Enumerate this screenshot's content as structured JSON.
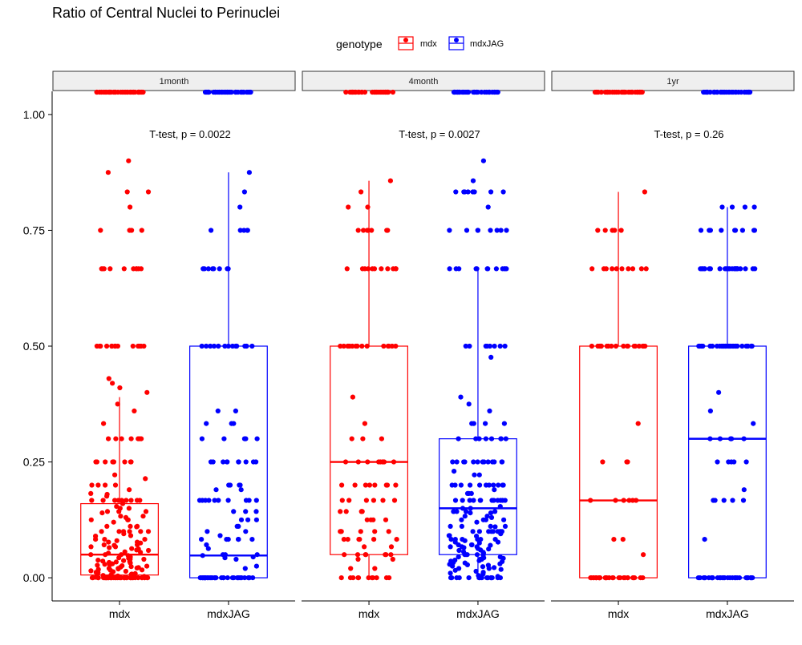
{
  "chart_data": {
    "type": "box",
    "title": "Ratio of Central Nuclei to Perinuclei",
    "xlabel": "",
    "ylabel": "",
    "ylim": [
      -0.05,
      1.05
    ],
    "yticks": [
      "0.00",
      "0.25",
      "0.50",
      "0.75",
      "1.00"
    ],
    "grid": false,
    "legend": {
      "title": "genotype",
      "position": "top",
      "entries": [
        {
          "name": "mdx",
          "color": "#ff0000"
        },
        {
          "name": "mdxJAG",
          "color": "#0000ff"
        }
      ]
    },
    "panels": [
      {
        "strip": "1month",
        "annotation": "T-test, p = 0.0022",
        "boxes": [
          {
            "group": "mdx",
            "color": "#ff0000",
            "q1": 0.006,
            "median": 0.05,
            "q3": 0.16,
            "whisker_low": 0.0,
            "whisker_high": 0.39,
            "cap_count": 40,
            "points": [
              0.9,
              0.875,
              0.833,
              0.833,
              0.8,
              0.75,
              0.75,
              0.75,
              0.75,
              0.667,
              0.667,
              0.667,
              0.667,
              0.667,
              0.667,
              0.667,
              0.667,
              0.667,
              0.667,
              0.5,
              0.5,
              0.5,
              0.5,
              0.5,
              0.5,
              0.5,
              0.5,
              0.5,
              0.5,
              0.5,
              0.5,
              0.5,
              0.5,
              0.43,
              0.42,
              0.41,
              0.4,
              0.375,
              0.36,
              0.333,
              0.3,
              0.3,
              0.3,
              0.3,
              0.3,
              0.3,
              0.3,
              0.25,
              0.25,
              0.25,
              0.25,
              0.25,
              0.25,
              0.25,
              0.25,
              0.25,
              0.222,
              0.214,
              0.2,
              0.2,
              0.2,
              0.2,
              0.19,
              0.182,
              0.18,
              0.176,
              0.167,
              0.167,
              0.167,
              0.167,
              0.167,
              0.167,
              0.167,
              0.167,
              0.167,
              0.16,
              0.154,
              0.15,
              0.15,
              0.143,
              0.143,
              0.143,
              0.14,
              0.133,
              0.133,
              0.13,
              0.125,
              0.125,
              0.125,
              0.12,
              0.111,
              0.111,
              0.111,
              0.11,
              0.1,
              0.1,
              0.1,
              0.1,
              0.1,
              0.1,
              0.095,
              0.091,
              0.09,
              0.083,
              0.083,
              0.083,
              0.08,
              0.077,
              0.077,
              0.075,
              0.071,
              0.071,
              0.07,
              0.067,
              0.067,
              0.065,
              0.063,
              0.062,
              0.06,
              0.059,
              0.056,
              0.055,
              0.053,
              0.05,
              0.05,
              0.05,
              0.048,
              0.045,
              0.045,
              0.043,
              0.042,
              0.04,
              0.04,
              0.038,
              0.037,
              0.036,
              0.035,
              0.034,
              0.033,
              0.032,
              0.03,
              0.03,
              0.029,
              0.028,
              0.027,
              0.026,
              0.025,
              0.024,
              0.023,
              0.022,
              0.021,
              0.02,
              0.02,
              0.019,
              0.018,
              0.017,
              0.016,
              0.015,
              0.014,
              0.013,
              0.012,
              0.011,
              0.01,
              0.01,
              0.009,
              0.008,
              0.007,
              0.006,
              0.005,
              0.004,
              0.003,
              0.002,
              0.001,
              0,
              0,
              0,
              0,
              0,
              0,
              0,
              0,
              0,
              0,
              0,
              0,
              0,
              0,
              0,
              0,
              0,
              0,
              0,
              0,
              0,
              0,
              0,
              0,
              0,
              0,
              0,
              0,
              0,
              0,
              0,
              0,
              0,
              0,
              0,
              0,
              0,
              0,
              0,
              0
            ]
          },
          {
            "group": "mdxJAG",
            "color": "#0000ff",
            "q1": 0.0,
            "median": 0.048,
            "q3": 0.5,
            "whisker_low": 0.0,
            "whisker_high": 0.875,
            "cap_count": 40,
            "points": [
              0.875,
              0.833,
              0.8,
              0.75,
              0.75,
              0.75,
              0.75,
              0.75,
              0.667,
              0.667,
              0.667,
              0.667,
              0.667,
              0.667,
              0.667,
              0.667,
              0.5,
              0.5,
              0.5,
              0.5,
              0.5,
              0.5,
              0.5,
              0.5,
              0.5,
              0.5,
              0.5,
              0.5,
              0.5,
              0.5,
              0.36,
              0.36,
              0.333,
              0.333,
              0.333,
              0.3,
              0.3,
              0.3,
              0.3,
              0.3,
              0.25,
              0.25,
              0.25,
              0.25,
              0.25,
              0.25,
              0.25,
              0.25,
              0.25,
              0.25,
              0.2,
              0.2,
              0.2,
              0.2,
              0.19,
              0.19,
              0.167,
              0.167,
              0.167,
              0.167,
              0.167,
              0.167,
              0.167,
              0.167,
              0.167,
              0.167,
              0.143,
              0.143,
              0.143,
              0.125,
              0.125,
              0.125,
              0.111,
              0.111,
              0.1,
              0.1,
              0.091,
              0.083,
              0.083,
              0.083,
              0.083,
              0.083,
              0.083,
              0.071,
              0.063,
              0.05,
              0.05,
              0.05,
              0.048,
              0.045,
              0.043,
              0.04,
              0.025,
              0.02,
              0,
              0,
              0,
              0,
              0,
              0,
              0,
              0,
              0,
              0,
              0,
              0,
              0,
              0,
              0,
              0,
              0,
              0,
              0,
              0,
              0,
              0,
              0,
              0,
              0,
              0,
              0,
              0,
              0,
              0,
              0,
              0,
              0,
              0
            ]
          }
        ]
      },
      {
        "strip": "4month",
        "annotation": "T-test, p = 0.0027",
        "boxes": [
          {
            "group": "mdx",
            "color": "#ff0000",
            "q1": 0.05,
            "median": 0.25,
            "q3": 0.5,
            "whisker_low": 0.0,
            "whisker_high": 0.857,
            "cap_count": 35,
            "points": [
              0.857,
              0.833,
              0.8,
              0.8,
              0.75,
              0.75,
              0.75,
              0.75,
              0.75,
              0.75,
              0.75,
              0.667,
              0.667,
              0.667,
              0.667,
              0.667,
              0.667,
              0.667,
              0.667,
              0.667,
              0.667,
              0.667,
              0.667,
              0.5,
              0.5,
              0.5,
              0.5,
              0.5,
              0.5,
              0.5,
              0.5,
              0.5,
              0.5,
              0.5,
              0.5,
              0.5,
              0.5,
              0.5,
              0.5,
              0.39,
              0.333,
              0.3,
              0.3,
              0.3,
              0.25,
              0.25,
              0.25,
              0.25,
              0.25,
              0.25,
              0.25,
              0.25,
              0.25,
              0.2,
              0.2,
              0.2,
              0.2,
              0.2,
              0.2,
              0.2,
              0.2,
              0.167,
              0.167,
              0.167,
              0.167,
              0.167,
              0.167,
              0.143,
              0.143,
              0.143,
              0.143,
              0.143,
              0.125,
              0.125,
              0.125,
              0.125,
              0.1,
              0.1,
              0.1,
              0.1,
              0.1,
              0.1,
              0.083,
              0.083,
              0.083,
              0.083,
              0.083,
              0.083,
              0.067,
              0.067,
              0.05,
              0.05,
              0.05,
              0.05,
              0.05,
              0.05,
              0.05,
              0.04,
              0.04,
              0.02,
              0.02,
              0,
              0,
              0,
              0,
              0,
              0,
              0,
              0,
              0,
              0,
              0
            ]
          },
          {
            "group": "mdxJAG",
            "color": "#0000ff",
            "q1": 0.05,
            "median": 0.15,
            "q3": 0.3,
            "whisker_low": 0.0,
            "whisker_high": 0.667,
            "cap_count": 35,
            "points": [
              0.9,
              0.857,
              0.833,
              0.833,
              0.833,
              0.833,
              0.833,
              0.833,
              0.833,
              0.833,
              0.8,
              0.75,
              0.75,
              0.75,
              0.75,
              0.75,
              0.75,
              0.75,
              0.75,
              0.667,
              0.667,
              0.667,
              0.667,
              0.667,
              0.667,
              0.667,
              0.667,
              0.667,
              0.667,
              0.667,
              0.667,
              0.5,
              0.5,
              0.5,
              0.5,
              0.5,
              0.5,
              0.5,
              0.5,
              0.476,
              0.39,
              0.375,
              0.36,
              0.333,
              0.333,
              0.333,
              0.333,
              0.3,
              0.3,
              0.3,
              0.3,
              0.3,
              0.3,
              0.3,
              0.3,
              0.25,
              0.25,
              0.25,
              0.25,
              0.25,
              0.25,
              0.25,
              0.25,
              0.25,
              0.25,
              0.25,
              0.25,
              0.25,
              0.23,
              0.222,
              0.222,
              0.2,
              0.2,
              0.2,
              0.2,
              0.2,
              0.2,
              0.2,
              0.2,
              0.2,
              0.2,
              0.2,
              0.19,
              0.182,
              0.182,
              0.182,
              0.167,
              0.167,
              0.167,
              0.167,
              0.167,
              0.167,
              0.167,
              0.167,
              0.167,
              0.167,
              0.167,
              0.167,
              0.154,
              0.15,
              0.15,
              0.143,
              0.143,
              0.143,
              0.143,
              0.143,
              0.14,
              0.14,
              0.133,
              0.133,
              0.13,
              0.125,
              0.125,
              0.125,
              0.125,
              0.12,
              0.111,
              0.111,
              0.111,
              0.111,
              0.11,
              0.1,
              0.1,
              0.1,
              0.1,
              0.1,
              0.1,
              0.1,
              0.1,
              0.1,
              0.095,
              0.091,
              0.091,
              0.09,
              0.083,
              0.083,
              0.083,
              0.083,
              0.083,
              0.083,
              0.08,
              0.077,
              0.077,
              0.075,
              0.071,
              0.071,
              0.071,
              0.07,
              0.067,
              0.067,
              0.067,
              0.065,
              0.063,
              0.062,
              0.06,
              0.059,
              0.056,
              0.055,
              0.053,
              0.05,
              0.05,
              0.05,
              0.05,
              0.048,
              0.045,
              0.045,
              0.043,
              0.042,
              0.04,
              0.04,
              0.038,
              0.037,
              0.036,
              0.035,
              0.033,
              0.032,
              0.03,
              0.03,
              0.029,
              0.028,
              0.027,
              0.025,
              0.024,
              0.022,
              0.02,
              0.02,
              0.018,
              0.016,
              0.014,
              0.012,
              0.01,
              0.008,
              0.005,
              0.003,
              0,
              0,
              0,
              0,
              0,
              0,
              0,
              0,
              0,
              0,
              0,
              0,
              0,
              0,
              0
            ]
          }
        ]
      },
      {
        "strip": "1yr",
        "annotation": "T-test, p = 0.26",
        "boxes": [
          {
            "group": "mdx",
            "color": "#ff0000",
            "q1": 0.0,
            "median": 0.167,
            "q3": 0.5,
            "whisker_low": 0.0,
            "whisker_high": 0.833,
            "cap_count": 35,
            "points": [
              0.833,
              0.75,
              0.75,
              0.75,
              0.75,
              0.75,
              0.667,
              0.667,
              0.667,
              0.667,
              0.667,
              0.667,
              0.667,
              0.667,
              0.667,
              0.667,
              0.5,
              0.5,
              0.5,
              0.5,
              0.5,
              0.5,
              0.5,
              0.5,
              0.5,
              0.5,
              0.5,
              0.5,
              0.5,
              0.5,
              0.5,
              0.5,
              0.5,
              0.5,
              0.5,
              0.5,
              0.333,
              0.25,
              0.25,
              0.25,
              0.167,
              0.167,
              0.167,
              0.167,
              0.167,
              0.167,
              0.083,
              0.083,
              0.05,
              0,
              0,
              0,
              0,
              0,
              0,
              0,
              0,
              0,
              0,
              0,
              0,
              0,
              0,
              0,
              0,
              0,
              0,
              0,
              0,
              0,
              0,
              0,
              0,
              0,
              0,
              0,
              0,
              0
            ]
          },
          {
            "group": "mdxJAG",
            "color": "#0000ff",
            "q1": 0.0,
            "median": 0.3,
            "q3": 0.5,
            "whisker_low": 0.0,
            "whisker_high": 0.8,
            "cap_count": 35,
            "points": [
              0.8,
              0.8,
              0.8,
              0.8,
              0.75,
              0.75,
              0.75,
              0.75,
              0.75,
              0.75,
              0.75,
              0.75,
              0.75,
              0.667,
              0.667,
              0.667,
              0.667,
              0.667,
              0.667,
              0.667,
              0.667,
              0.667,
              0.667,
              0.667,
              0.667,
              0.667,
              0.667,
              0.667,
              0.667,
              0.667,
              0.667,
              0.667,
              0.667,
              0.667,
              0.667,
              0.667,
              0.667,
              0.667,
              0.5,
              0.5,
              0.5,
              0.5,
              0.5,
              0.5,
              0.5,
              0.5,
              0.5,
              0.5,
              0.5,
              0.5,
              0.5,
              0.5,
              0.5,
              0.5,
              0.5,
              0.5,
              0.5,
              0.5,
              0.5,
              0.5,
              0.5,
              0.5,
              0.5,
              0.5,
              0.5,
              0.5,
              0.5,
              0.5,
              0.5,
              0.5,
              0.4,
              0.36,
              0.333,
              0.3,
              0.3,
              0.3,
              0.3,
              0.3,
              0.25,
              0.25,
              0.25,
              0.25,
              0.25,
              0.19,
              0.167,
              0.167,
              0.167,
              0.167,
              0.167,
              0.083,
              0,
              0,
              0,
              0,
              0,
              0,
              0,
              0,
              0,
              0,
              0,
              0,
              0,
              0,
              0,
              0,
              0,
              0,
              0,
              0,
              0,
              0,
              0,
              0,
              0,
              0,
              0,
              0,
              0,
              0
            ]
          }
        ]
      }
    ]
  }
}
